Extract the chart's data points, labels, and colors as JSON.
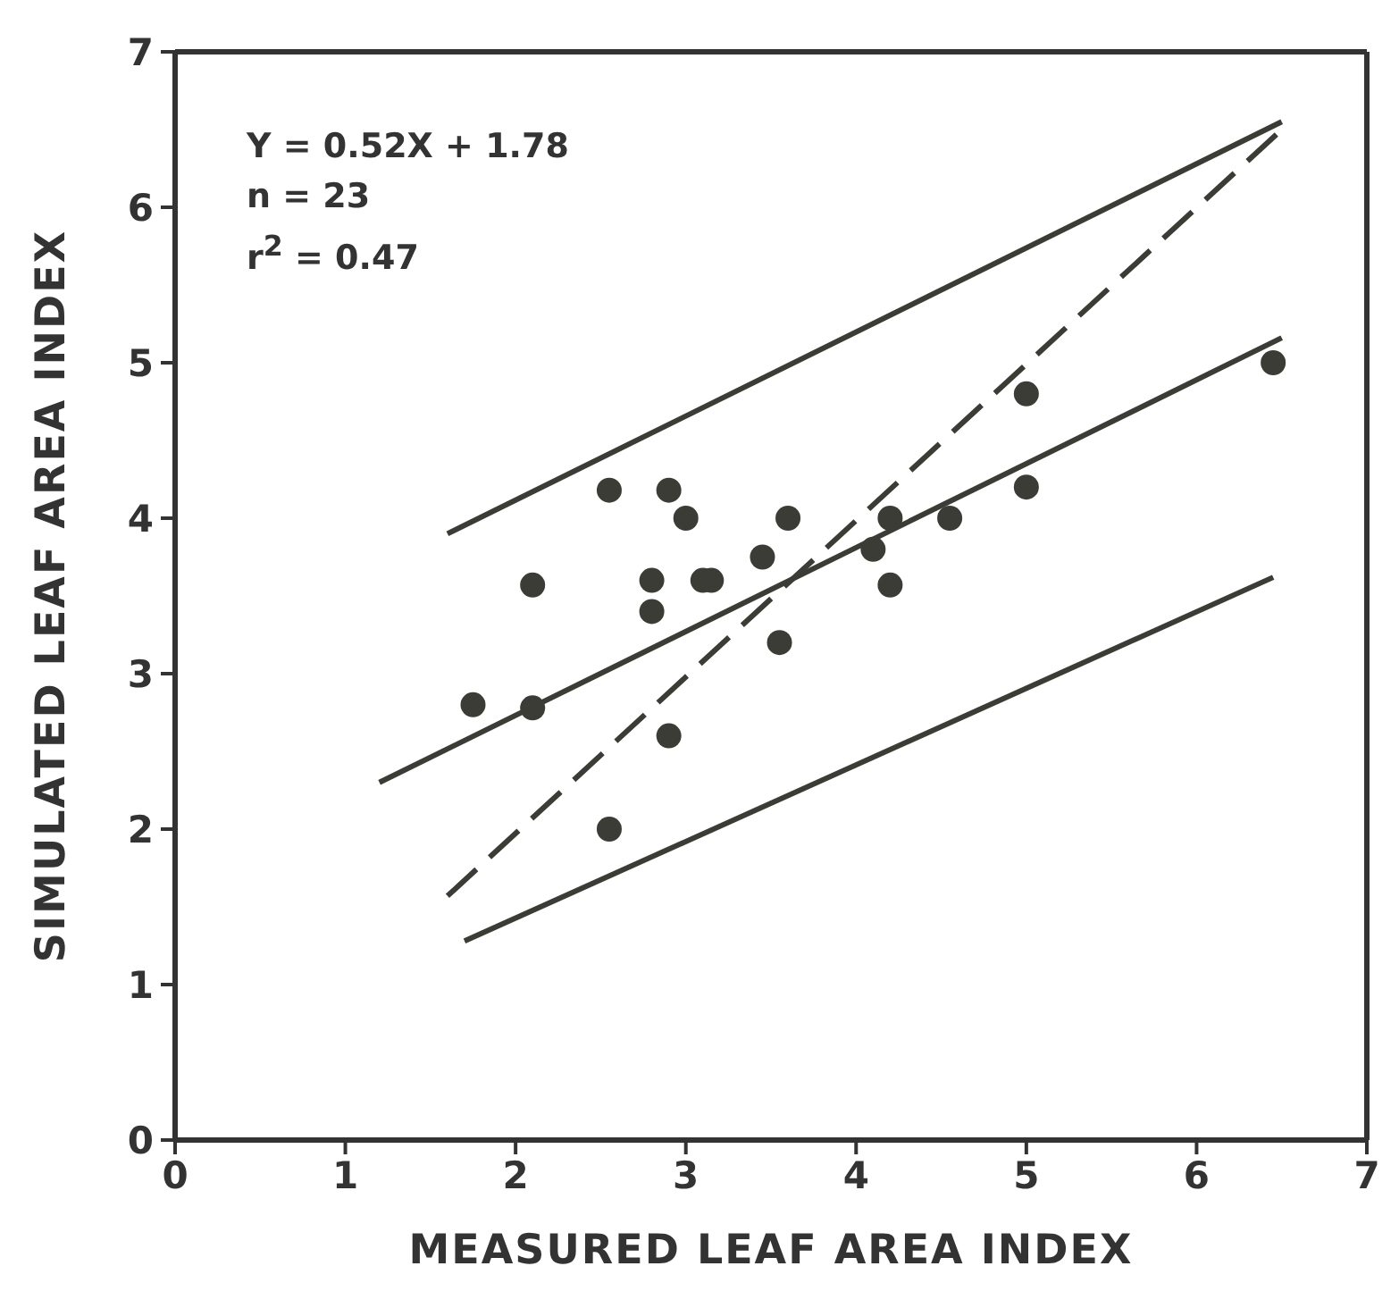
{
  "chart_data": {
    "type": "scatter",
    "xlabel": "MEASURED LEAF AREA INDEX",
    "ylabel": "SIMULATED LEAF AREA INDEX",
    "xlim": [
      0,
      7
    ],
    "ylim": [
      0,
      7
    ],
    "xticks": [
      0,
      1,
      2,
      3,
      4,
      5,
      6,
      7
    ],
    "yticks": [
      0,
      1,
      2,
      3,
      4,
      5,
      6,
      7
    ],
    "grid": false,
    "legend": false,
    "marker": "circle",
    "annotations": [
      "Y = 0.52X + 1.78",
      "n = 23",
      "r$^{2}$ = 0.47"
    ],
    "series": [
      {
        "color": "#3c3c36",
        "x": [
          1.75,
          2.1,
          2.1,
          2.55,
          2.55,
          2.8,
          2.8,
          2.9,
          2.9,
          3.0,
          3.1,
          3.15,
          3.45,
          3.55,
          3.6,
          4.1,
          4.2,
          4.2,
          4.55,
          5.0,
          5.0,
          6.45
        ],
        "values": [
          2.8,
          2.78,
          3.57,
          4.18,
          2.0,
          3.6,
          3.4,
          4.18,
          2.6,
          4.0,
          3.6,
          3.6,
          3.75,
          3.2,
          4.0,
          3.8,
          4.0,
          3.57,
          4.0,
          4.8,
          4.2,
          5.0
        ]
      },
      {
        "type": "line",
        "color": "#3c3c36",
        "marker": "none",
        "line_style": "solid",
        "x": [
          1.2,
          6.5
        ],
        "values": [
          2.3,
          5.16
        ]
      },
      {
        "type": "line",
        "color": "#3c3c36",
        "marker": "none",
        "line_style": "solid",
        "x": [
          1.6,
          6.5
        ],
        "values": [
          3.9,
          6.55
        ]
      },
      {
        "type": "line",
        "color": "#3c3c36",
        "marker": "none",
        "line_style": "solid",
        "x": [
          1.7,
          6.45
        ],
        "values": [
          1.28,
          3.62
        ]
      },
      {
        "type": "line",
        "color": "#3c3c36",
        "marker": "none",
        "line_style": "dashed",
        "x": [
          1.6,
          6.5
        ],
        "values": [
          1.57,
          6.5
        ]
      }
    ]
  }
}
